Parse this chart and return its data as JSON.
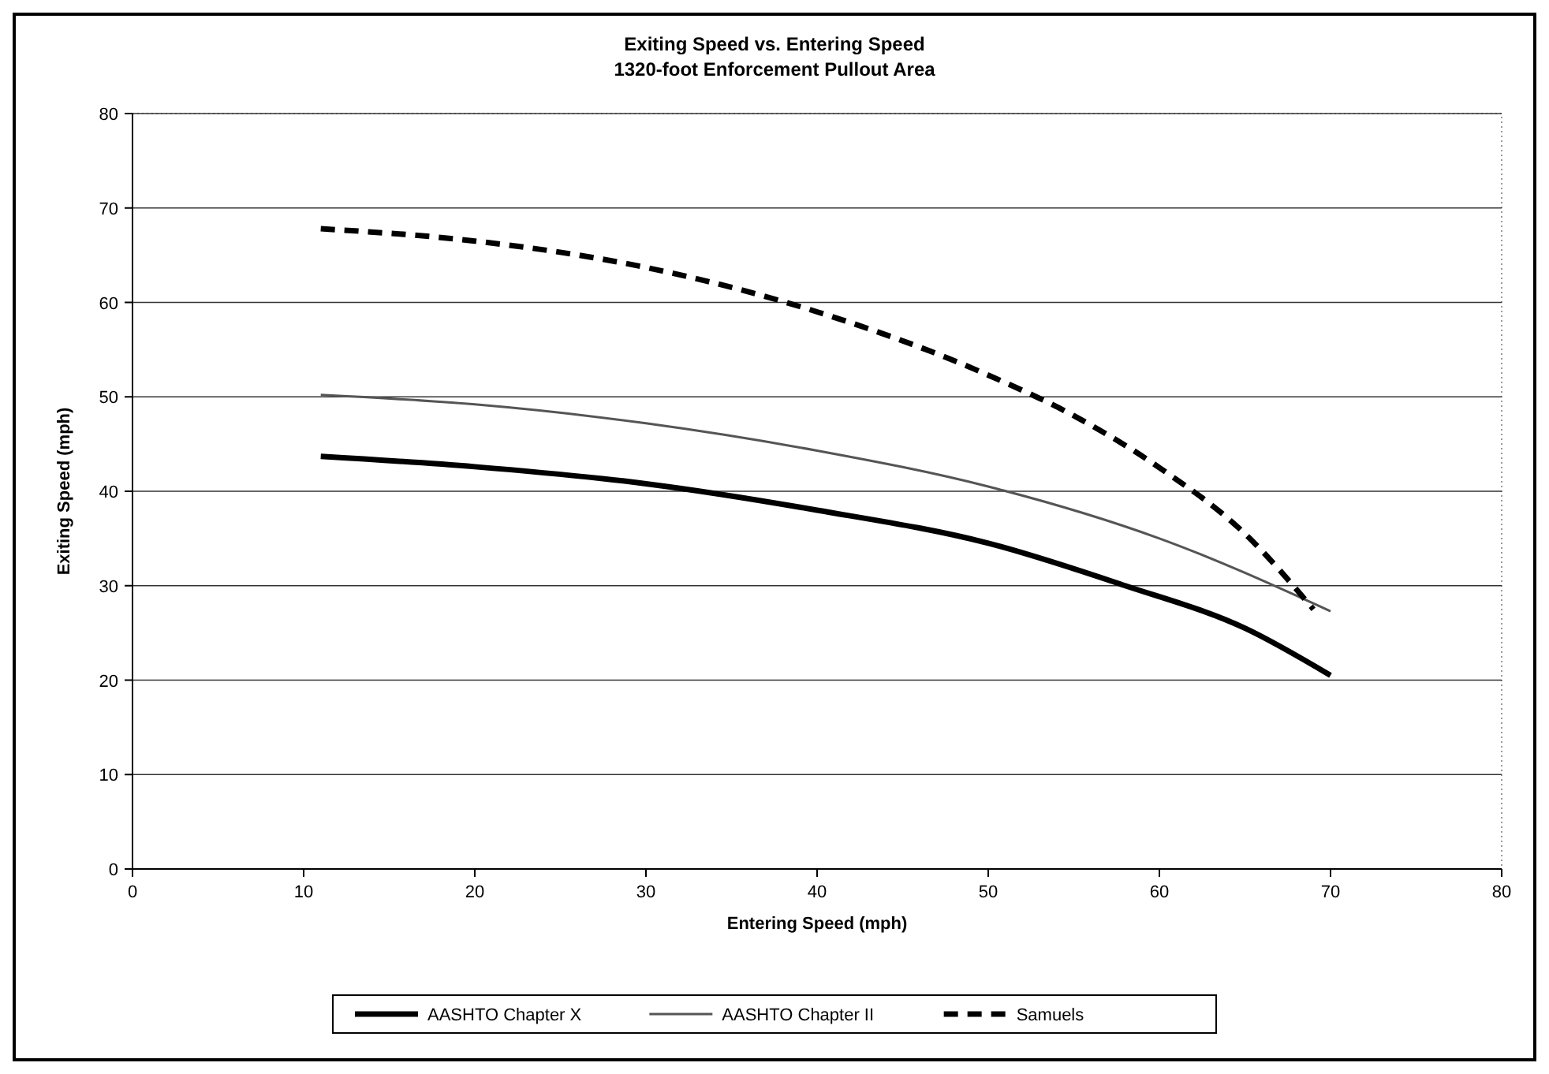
{
  "chart_data": {
    "type": "line",
    "title": "Exiting Speed vs. Entering Speed",
    "subtitle": "1320-foot Enforcement Pullout Area",
    "xlabel": "Entering Speed (mph)",
    "ylabel": "Exiting Speed (mph)",
    "xlim": [
      0,
      80
    ],
    "xticks": [
      0,
      10,
      20,
      30,
      40,
      50,
      60,
      70,
      80
    ],
    "ylim": [
      0,
      80
    ],
    "yticks": [
      0,
      10,
      20,
      30,
      40,
      50,
      60,
      70,
      80
    ],
    "grid": "y",
    "legend": "bottom",
    "marker": "none",
    "series": [
      {
        "name": "AASHTO Chapter X",
        "color": "#000000",
        "line_style": "solid",
        "x": [
          11,
          20,
          30,
          40,
          50,
          58,
          65,
          70
        ],
        "values": [
          43.7,
          42.6,
          40.8,
          38,
          34.5,
          30,
          25.5,
          20.5
        ]
      },
      {
        "name": "AASHTO Chapter II",
        "color": "#555555",
        "line_style": "solid",
        "x": [
          11,
          20,
          30,
          40,
          50,
          60,
          70
        ],
        "values": [
          50.2,
          49.2,
          47.2,
          44.3,
          40.5,
          35,
          27.3
        ]
      },
      {
        "name": "Samuels",
        "color": "#000000",
        "line_style": "dashed",
        "x": [
          11,
          20,
          30,
          40,
          50,
          55,
          60,
          65,
          69
        ],
        "values": [
          67.8,
          66.5,
          63.7,
          59,
          52.3,
          48,
          42.5,
          35.5,
          27.5
        ]
      }
    ]
  }
}
